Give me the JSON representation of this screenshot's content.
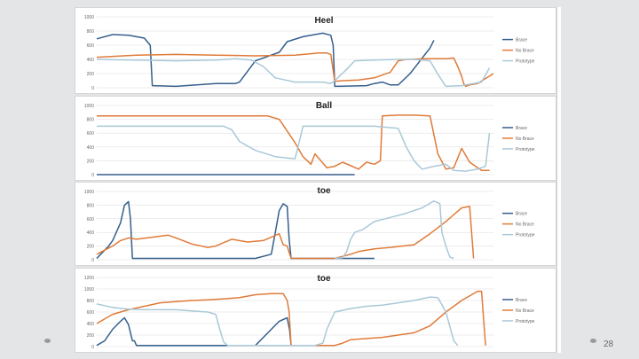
{
  "slide": {
    "page_number": "28"
  },
  "colors": {
    "background": "#e4e5e6",
    "panel": "#ffffff",
    "grid": "#d9d9d9",
    "navy": "#355f8d",
    "orange": "#e07b39",
    "lightblue": "#a9c9d8"
  },
  "chart_data": [
    {
      "type": "line",
      "title": "Heel",
      "ylim": [
        0,
        1000
      ],
      "yticks": [
        "0",
        "200",
        "400",
        "600",
        "800",
        "1000"
      ],
      "grid": true,
      "legend_position": "right",
      "series": [
        {
          "name": "Brace",
          "color": "#355f8d",
          "x": [
            0,
            4,
            8,
            12,
            13.5,
            14,
            20,
            30,
            35,
            36,
            40,
            46,
            48,
            52,
            57,
            59,
            59.6,
            60,
            68,
            70,
            72,
            74,
            76,
            79,
            84,
            85
          ],
          "values": [
            690,
            750,
            740,
            700,
            600,
            30,
            20,
            60,
            60,
            80,
            380,
            500,
            650,
            720,
            770,
            740,
            600,
            20,
            30,
            60,
            80,
            40,
            40,
            200,
            560,
            670
          ]
        },
        {
          "name": "No Brace",
          "color": "#e07b39",
          "x": [
            0,
            10,
            20,
            30,
            40,
            50,
            56,
            58,
            59,
            60,
            62,
            66,
            70,
            74,
            76,
            78,
            83,
            88,
            90,
            91,
            92,
            92.5,
            93,
            94,
            96,
            100
          ],
          "values": [
            430,
            460,
            470,
            460,
            450,
            460,
            490,
            490,
            470,
            90,
            100,
            110,
            140,
            220,
            380,
            400,
            410,
            410,
            420,
            300,
            160,
            60,
            20,
            40,
            60,
            200
          ]
        },
        {
          "name": "Prototype",
          "color": "#a9c9d8",
          "x": [
            0,
            10,
            20,
            30,
            35,
            39,
            42,
            45,
            50,
            57,
            59,
            60,
            63,
            65,
            70,
            76,
            80,
            84,
            86,
            88,
            92,
            97,
            99
          ],
          "values": [
            400,
            390,
            380,
            390,
            410,
            390,
            300,
            140,
            80,
            80,
            60,
            100,
            260,
            380,
            390,
            400,
            400,
            380,
            190,
            20,
            30,
            80,
            280
          ]
        }
      ]
    },
    {
      "type": "line",
      "title": "Ball",
      "ylim": [
        0,
        1000
      ],
      "yticks": [
        "0",
        "200",
        "400",
        "600",
        "800",
        "1000"
      ],
      "grid": true,
      "legend_position": "right",
      "series": [
        {
          "name": "Brace",
          "color": "#355f8d",
          "x": [
            0,
            10,
            20,
            30,
            40,
            50,
            60,
            65
          ],
          "values": [
            0,
            0,
            0,
            0,
            0,
            0,
            0,
            0
          ]
        },
        {
          "name": "No Brace",
          "color": "#e07b39",
          "x": [
            0,
            10,
            20,
            30,
            38,
            43,
            46,
            50,
            52,
            54,
            55,
            58,
            60,
            62,
            66,
            68,
            70,
            71.5,
            72,
            76,
            80,
            84,
            86,
            88,
            90,
            92,
            94,
            97,
            99
          ],
          "values": [
            850,
            850,
            850,
            850,
            850,
            850,
            800,
            460,
            260,
            150,
            300,
            100,
            120,
            180,
            80,
            180,
            150,
            200,
            850,
            860,
            860,
            850,
            300,
            80,
            100,
            380,
            180,
            60,
            60
          ]
        },
        {
          "name": "Prototype",
          "color": "#a9c9d8",
          "x": [
            0,
            10,
            20,
            28,
            32,
            34,
            36,
            40,
            45,
            48,
            50,
            52,
            56,
            60,
            62,
            70,
            76,
            78,
            80,
            82,
            85,
            88,
            90,
            93,
            96,
            98,
            99
          ],
          "values": [
            700,
            700,
            700,
            700,
            700,
            650,
            480,
            350,
            260,
            240,
            230,
            700,
            700,
            700,
            700,
            700,
            670,
            400,
            200,
            80,
            120,
            150,
            60,
            50,
            80,
            120,
            600
          ]
        }
      ]
    },
    {
      "type": "line",
      "title": "toe",
      "ylim": [
        0,
        1000
      ],
      "yticks": [
        "0",
        "200",
        "400",
        "600",
        "800",
        "1000"
      ],
      "grid": true,
      "legend_position": "right",
      "series": [
        {
          "name": "Brace",
          "color": "#355f8d",
          "x": [
            0,
            1,
            3,
            4,
            6,
            7,
            8,
            8.5,
            9,
            40,
            44,
            45,
            46,
            47,
            48,
            48.5,
            49,
            55,
            60,
            61,
            70
          ],
          "values": [
            20,
            80,
            200,
            280,
            540,
            800,
            850,
            600,
            20,
            20,
            80,
            400,
            720,
            820,
            780,
            300,
            20,
            20,
            20,
            20,
            20
          ]
        },
        {
          "name": "No Brace",
          "color": "#e07b39",
          "x": [
            0,
            4,
            6,
            8,
            10,
            14,
            18,
            20,
            24,
            28,
            30,
            34,
            38,
            42,
            46,
            47,
            48,
            49,
            50,
            60,
            64,
            66,
            70,
            74,
            80,
            84,
            88,
            92,
            94,
            95
          ],
          "values": [
            80,
            200,
            280,
            320,
            300,
            330,
            360,
            320,
            230,
            180,
            200,
            300,
            260,
            280,
            380,
            220,
            200,
            20,
            20,
            20,
            80,
            120,
            160,
            180,
            220,
            380,
            560,
            760,
            780,
            20
          ]
        },
        {
          "name": "Prototype",
          "color": "#a9c9d8",
          "x": [
            60,
            62,
            63,
            64,
            65,
            67,
            70,
            74,
            78,
            82,
            85,
            86.5,
            87,
            88,
            89,
            90
          ],
          "values": [
            20,
            30,
            120,
            300,
            400,
            440,
            560,
            620,
            680,
            760,
            860,
            820,
            400,
            200,
            40,
            20
          ]
        }
      ]
    },
    {
      "type": "line",
      "title": "toe",
      "ylim": [
        0,
        1200
      ],
      "yticks": [
        "0",
        "200",
        "400",
        "600",
        "800",
        "1000",
        "1200"
      ],
      "grid": true,
      "legend_position": "right",
      "series": [
        {
          "name": "Brace",
          "color": "#355f8d",
          "x": [
            0,
            2,
            4,
            6,
            7,
            8,
            9,
            9.5,
            10,
            40,
            44,
            46,
            48,
            48.6,
            49,
            60
          ],
          "values": [
            20,
            100,
            300,
            440,
            500,
            380,
            100,
            100,
            20,
            20,
            300,
            440,
            500,
            300,
            20,
            20
          ]
        },
        {
          "name": "No Brace",
          "color": "#e07b39",
          "x": [
            0,
            4,
            8,
            12,
            16,
            20,
            24,
            28,
            32,
            36,
            40,
            44,
            47,
            48,
            48.5,
            49,
            56,
            60,
            62,
            64,
            68,
            72,
            76,
            80,
            84,
            88,
            92,
            96,
            97,
            98
          ],
          "values": [
            400,
            560,
            640,
            700,
            760,
            780,
            800,
            810,
            830,
            850,
            900,
            920,
            920,
            800,
            600,
            20,
            20,
            20,
            60,
            120,
            140,
            160,
            200,
            240,
            360,
            600,
            800,
            960,
            960,
            20
          ]
        },
        {
          "name": "Prototype",
          "color": "#a9c9d8",
          "x": [
            0,
            4,
            8,
            12,
            16,
            20,
            24,
            28,
            30,
            31,
            32,
            33,
            34,
            55,
            57,
            58,
            60,
            64,
            68,
            72,
            76,
            80,
            84,
            86,
            88,
            90,
            91
          ],
          "values": [
            740,
            680,
            650,
            640,
            640,
            640,
            620,
            600,
            560,
            300,
            80,
            20,
            20,
            20,
            60,
            300,
            600,
            660,
            700,
            720,
            760,
            800,
            860,
            850,
            600,
            100,
            20
          ]
        }
      ]
    }
  ]
}
